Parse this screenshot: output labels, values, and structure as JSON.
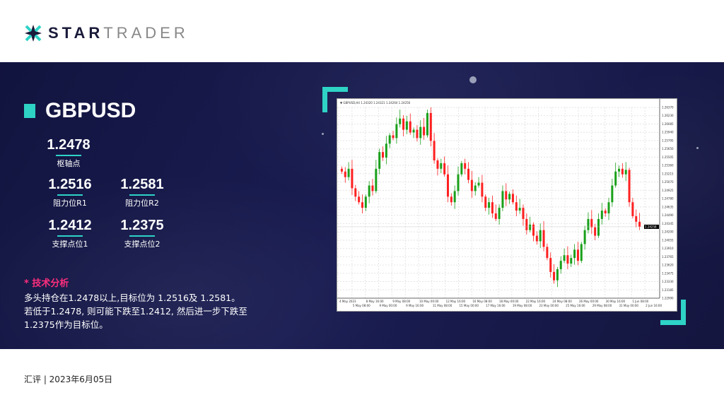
{
  "brand": {
    "name_bold": "STAR",
    "name_light": "TRADER"
  },
  "symbol": "GBPUSD",
  "levels": {
    "pivot": {
      "value": "1.2478",
      "label": "枢轴点"
    },
    "r1": {
      "value": "1.2516",
      "label": "阻力位R1"
    },
    "r2": {
      "value": "1.2581",
      "label": "阻力位R2"
    },
    "s1": {
      "value": "1.2412",
      "label": "支撑点位1"
    },
    "s2": {
      "value": "1.2375",
      "label": "支撑点位2"
    }
  },
  "analysis": {
    "heading": "* 技术分析",
    "lines": [
      "多头持仓在1.2478以上,目标位为 1.2516及 1.2581。",
      "若低于1.2478, 则可能下跌至1.2412, 然后进一步下跌至",
      "1.2375作为目标位。"
    ]
  },
  "footer": "汇评 | 2023年6月05日",
  "colors": {
    "accent": "#2ed3c6",
    "highlight": "#ff2e7e",
    "panel": "#14163f",
    "bull": "#1aa01a",
    "bear": "#ff2020"
  },
  "chart_data": {
    "type": "candlestick",
    "title": "GBPUSD,H4  1.24320 1.24321 1.24264 1.24256",
    "current_price": "1.24258",
    "ylim": [
      1.2298,
      1.264
    ],
    "y_ticks": [
      "1.26370",
      "1.26230",
      "1.26085",
      "1.25940",
      "1.25795",
      "1.25650",
      "1.25505",
      "1.25360",
      "1.25215",
      "1.25070",
      "1.24925",
      "1.24780",
      "1.24635",
      "1.24490",
      "1.24345",
      "1.24200",
      "1.24055",
      "1.23910",
      "1.23765",
      "1.23620",
      "1.23475",
      "1.23330",
      "1.23185",
      "1.22990"
    ],
    "x_ticks": [
      "4 May 2023",
      "5 May 08:00",
      "8 May 16:00",
      "9 May 00:00",
      "9 May 08:00",
      "9 May 16:00",
      "10 May 00:00",
      "11 May 08:00",
      "12 May 16:00",
      "15 May 00:00",
      "16 May 08:00",
      "17 May 16:00",
      "18 May 00:00",
      "19 May 08:00",
      "22 May 16:00",
      "23 May 00:00",
      "24 May 08:00",
      "25 May 16:00",
      "26 May 00:00",
      "29 May 08:00",
      "30 May 16:00",
      "31 May 00:00",
      "1 Jun 08:00",
      "2 Jun 16:00"
    ],
    "closes": [
      1.2525,
      1.2515,
      1.253,
      1.2495,
      1.248,
      1.247,
      1.246,
      1.248,
      1.25,
      1.249,
      1.253,
      1.256,
      1.255,
      1.2575,
      1.259,
      1.2585,
      1.261,
      1.262,
      1.26,
      1.2615,
      1.2595,
      1.26,
      1.2585,
      1.2605,
      1.259,
      1.263,
      1.258,
      1.2545,
      1.253,
      1.254,
      1.252,
      1.248,
      1.247,
      1.249,
      1.252,
      1.254,
      1.253,
      1.251,
      1.249,
      1.25,
      1.2505,
      1.248,
      1.246,
      1.247,
      1.245,
      1.244,
      1.246,
      1.249,
      1.2475,
      1.2485,
      1.247,
      1.2455,
      1.246,
      1.244,
      1.242,
      1.243,
      1.241,
      1.24,
      1.242,
      1.239,
      1.237,
      1.2345,
      1.233,
      1.235,
      1.2365,
      1.2375,
      1.236,
      1.237,
      1.2385,
      1.2365,
      1.2395,
      1.242,
      1.244,
      1.2425,
      1.241,
      1.244,
      1.2455,
      1.245,
      1.247,
      1.25,
      1.2525,
      1.253,
      1.252,
      1.2528,
      1.247,
      1.2445,
      1.2435,
      1.2426
    ]
  }
}
